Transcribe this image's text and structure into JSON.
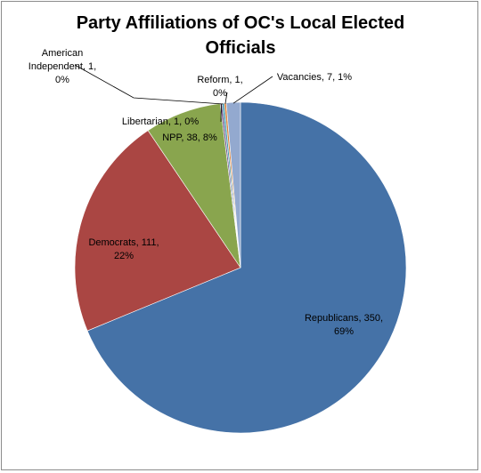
{
  "chart_data": {
    "type": "pie",
    "title": "Party Affiliations of OC's Local Elected Officials",
    "slices": [
      {
        "name": "Republicans",
        "value": 350,
        "percent": "69%",
        "color": "#4572a7"
      },
      {
        "name": "Democrats",
        "value": 111,
        "percent": "22%",
        "color": "#aa4643"
      },
      {
        "name": "NPP",
        "value": 38,
        "percent": "8%",
        "color": "#89a54e"
      },
      {
        "name": "Libertarian",
        "value": 1,
        "percent": "0%",
        "color": "#71588f"
      },
      {
        "name": "American Independent",
        "value": 1,
        "percent": "0%",
        "color": "#4198af"
      },
      {
        "name": "Reform",
        "value": 1,
        "percent": "0%",
        "color": "#db843d"
      },
      {
        "name": "Vacancies",
        "value": 7,
        "percent": "1%",
        "color": "#93a9cf"
      }
    ],
    "labels": [
      {
        "lines": [
          "Republicans, 350,",
          "69%"
        ]
      },
      {
        "lines": [
          "Democrats, 111,",
          "22%"
        ]
      },
      {
        "lines": [
          "NPP, 38, 8%"
        ]
      },
      {
        "lines": [
          "Libertarian, 1, 0%"
        ]
      },
      {
        "lines": [
          "American",
          "Independent, 1,",
          "0%"
        ]
      },
      {
        "lines": [
          "Reform, 1,",
          "0%"
        ]
      },
      {
        "lines": [
          "Vacancies, 7, 1%"
        ]
      }
    ],
    "legend": "none"
  }
}
